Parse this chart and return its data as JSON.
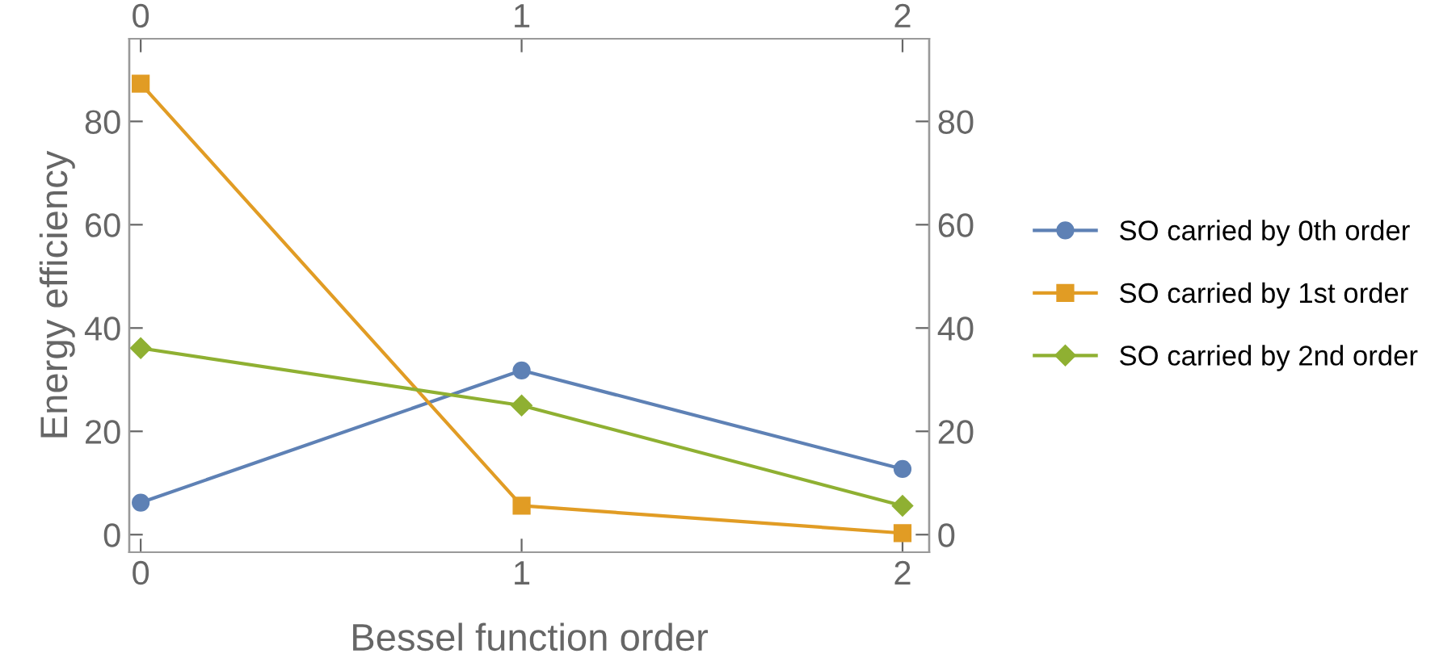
{
  "chart_data": {
    "type": "line",
    "xlabel": "Bessel function order",
    "ylabel": "Energy efficiency",
    "x": [
      0,
      1,
      2
    ],
    "series": [
      {
        "name": "SO carried by 0th order",
        "color": "#5e81b5",
        "marker": "circle",
        "values": [
          6.2,
          31.8,
          12.7
        ]
      },
      {
        "name": "SO carried by 1st order",
        "color": "#e19c24",
        "marker": "square",
        "values": [
          87.3,
          5.6,
          0.3
        ]
      },
      {
        "name": "SO carried by 2nd order",
        "color": "#8fb032",
        "marker": "diamond",
        "values": [
          36.1,
          25,
          5.6
        ]
      }
    ],
    "xlim": [
      -0.03,
      2.07
    ],
    "ylim": [
      -3.4,
      96
    ],
    "xticks": [
      0,
      1,
      2
    ],
    "yticks": [
      0,
      20,
      40,
      60,
      80
    ],
    "x2lim": [
      -0.03,
      2.07
    ],
    "x2ticks": [
      0,
      1,
      2
    ],
    "y2lim": [
      -3.4,
      96
    ],
    "y2ticks": [
      0,
      20,
      40,
      60,
      80
    ],
    "grid": false,
    "legend": "right",
    "line_style": "solid"
  }
}
